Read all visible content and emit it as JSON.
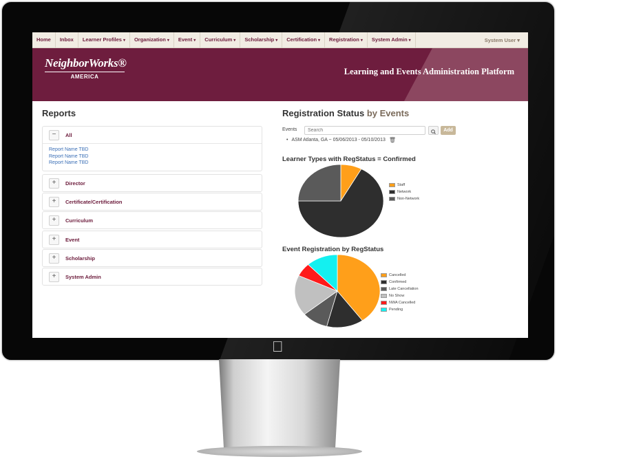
{
  "nav": {
    "items": [
      {
        "label": "Home",
        "dropdown": false
      },
      {
        "label": "Inbox",
        "dropdown": false
      },
      {
        "label": "Learner Profiles",
        "dropdown": true
      },
      {
        "label": "Organization",
        "dropdown": true
      },
      {
        "label": "Event",
        "dropdown": true
      },
      {
        "label": "Curriculum",
        "dropdown": true
      },
      {
        "label": "Scholarship",
        "dropdown": true
      },
      {
        "label": "Certification",
        "dropdown": true
      },
      {
        "label": "Registration",
        "dropdown": true
      },
      {
        "label": "System Admin",
        "dropdown": true
      }
    ],
    "user": "System User"
  },
  "banner": {
    "logo_name": "NeighborWorks®",
    "logo_sub": "AMERICA",
    "title": "Learning and Events Administration Platform"
  },
  "reports": {
    "title": "Reports",
    "groups": [
      {
        "label": "All",
        "expanded": true,
        "links": [
          "Report Name TBD",
          "Report Name TBD",
          "Report Name TBD"
        ]
      },
      {
        "label": "Director",
        "expanded": false
      },
      {
        "label": "Certificate/Certification",
        "expanded": false
      },
      {
        "label": "Curriculum",
        "expanded": false
      },
      {
        "label": "Event",
        "expanded": false
      },
      {
        "label": "Scholarship",
        "expanded": false
      },
      {
        "label": "System Admin",
        "expanded": false
      }
    ]
  },
  "registration": {
    "title": "Registration Status",
    "title_suffix": "by Events",
    "events_label": "Events",
    "search_placeholder": "Search",
    "add_label": "Add",
    "selected_event": "ASM Atlanta, GA ~ 05/06/2013 - 05/10/2013"
  },
  "chart_data": [
    {
      "type": "pie",
      "title": "Learner Types with RegStatus = Confirmed",
      "series": [
        {
          "name": "Staff",
          "value": 8,
          "color": "#ff9f1a"
        },
        {
          "name": "Network",
          "value": 67,
          "color": "#2e2e2e"
        },
        {
          "name": "Non-Network",
          "value": 25,
          "color": "#5a5a5a"
        }
      ]
    },
    {
      "type": "pie",
      "title": "Event Registration by RegStatus",
      "series": [
        {
          "name": "Cancelled",
          "value": 40,
          "color": "#ff9f1a"
        },
        {
          "name": "Confirmed",
          "value": 14,
          "color": "#2e2e2e"
        },
        {
          "name": "Late Cancellation",
          "value": 10,
          "color": "#5a5a5a"
        },
        {
          "name": "No Show",
          "value": 18,
          "color": "#c0c0c0"
        },
        {
          "name": "NWA Cancelled",
          "value": 6,
          "color": "#ff1a1a"
        },
        {
          "name": "Pending",
          "value": 12,
          "color": "#14f0f0"
        }
      ]
    }
  ]
}
